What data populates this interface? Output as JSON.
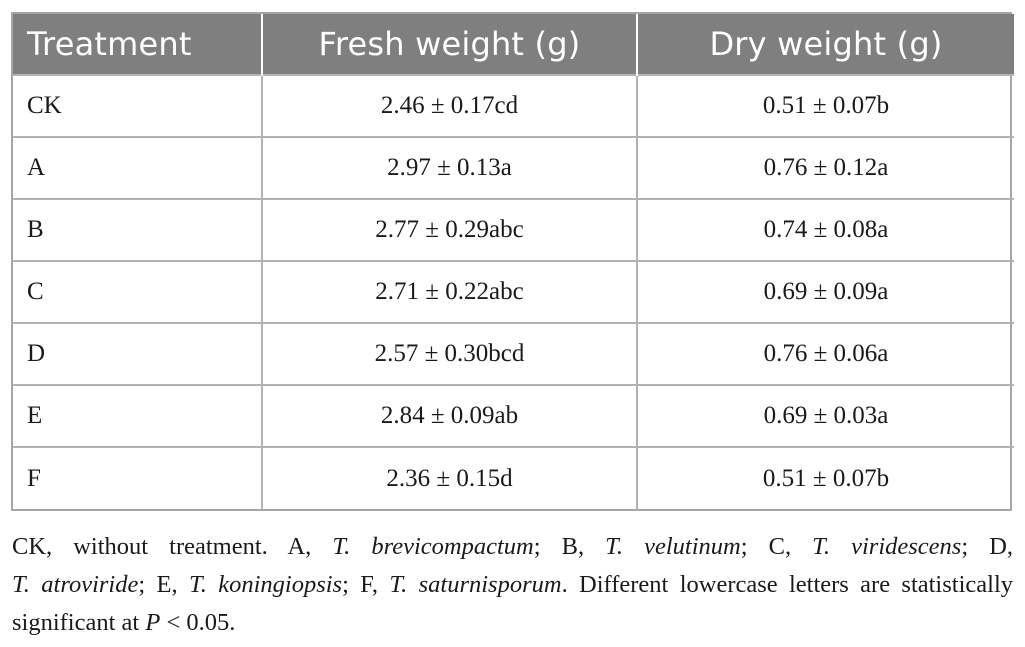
{
  "table": {
    "headers": [
      "Treatment",
      "Fresh weight (g)",
      "Dry weight (g)"
    ],
    "rows": [
      {
        "treatment": "CK",
        "fresh": "2.46 ± 0.17cd",
        "dry": "0.51 ± 0.07b"
      },
      {
        "treatment": "A",
        "fresh": "2.97 ± 0.13a",
        "dry": "0.76 ± 0.12a"
      },
      {
        "treatment": "B",
        "fresh": "2.77 ± 0.29abc",
        "dry": "0.74 ± 0.08a"
      },
      {
        "treatment": "C",
        "fresh": "2.71 ± 0.22abc",
        "dry": "0.69 ± 0.09a"
      },
      {
        "treatment": "D",
        "fresh": "2.57 ± 0.30bcd",
        "dry": "0.76 ± 0.06a"
      },
      {
        "treatment": "E",
        "fresh": "2.84 ± 0.09ab",
        "dry": "0.69 ± 0.03a"
      },
      {
        "treatment": "F",
        "fresh": "2.36 ± 0.15d",
        "dry": "0.51 ± 0.07b"
      }
    ],
    "header_color": "#7f7f7f"
  },
  "footnote": {
    "ck": "CK, without treatment. A, ",
    "a_species": "T. brevicompactum",
    "b_prefix": "; B, ",
    "b_species": "T. velutinum",
    "c_prefix": "; C, ",
    "c_species": "T. viridescens",
    "d_prefix": "; D,",
    "d_species": "T. atroviride",
    "e_prefix": "; E, ",
    "e_species": "T. koningiopsis",
    "f_prefix": "; F, ",
    "f_species": "T. saturnisporum",
    "sig_text": ". Different lowercase letters are statistically",
    "sig_text2": "significant at ",
    "p_symbol": "P",
    "p_value": " < 0.05."
  }
}
